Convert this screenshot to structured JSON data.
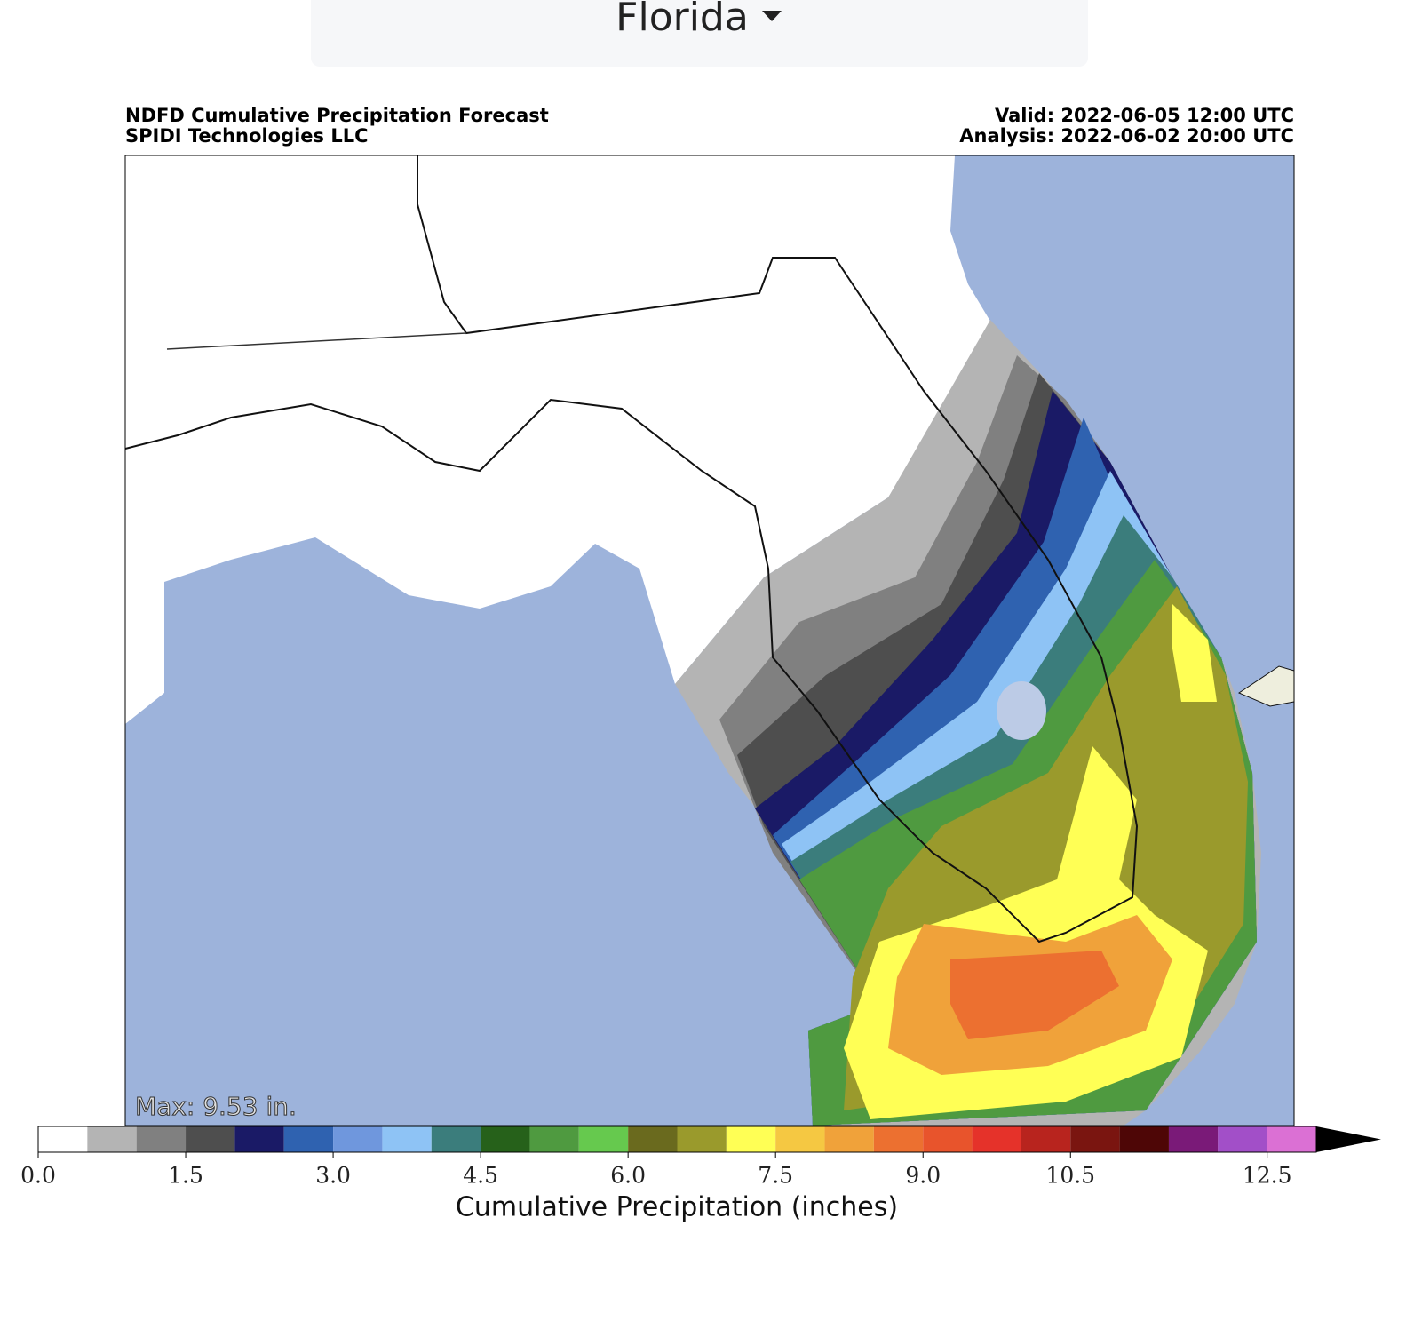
{
  "dropdown": {
    "label": "Florida"
  },
  "chart_data": {
    "type": "colorbar",
    "title": "NDFD Cumulative Precipitation Forecast",
    "subtitle": "SPIDI Technologies LLC",
    "valid": "Valid: 2022-06-05 12:00 UTC",
    "analysis": "Analysis: 2022-06-02 20:00 UTC",
    "annotation": "Max: 9.53 in.",
    "xlabel": "Cumulative Precipitation (inches)",
    "bins": [
      0,
      0.5,
      1,
      1.5,
      2,
      2.5,
      3,
      3.5,
      4,
      4.5,
      5,
      5.5,
      6,
      6.5,
      7,
      7.5,
      8,
      8.5,
      9,
      9.5,
      10,
      10.5,
      11,
      11.5,
      12,
      12.5,
      13
    ],
    "colors": [
      "#ffffff",
      "#b4b4b4",
      "#808080",
      "#4e4e4e",
      "#1a1a66",
      "#2f62b0",
      "#6f97dd",
      "#8ec3f5",
      "#3b7d7c",
      "#26611a",
      "#4f9a40",
      "#66c94e",
      "#6a6a1e",
      "#9a9a2c",
      "#ffff55",
      "#f5c842",
      "#f0a23a",
      "#ec7030",
      "#e8542c",
      "#e5322a",
      "#b8241e",
      "#7a1510",
      "#4e0606",
      "#7a1a78",
      "#a24fc8",
      "#db70d4"
    ],
    "extend": "max",
    "extend_color": "#000000",
    "xlim": [
      0,
      13
    ],
    "xticks": [
      {
        "value": 0,
        "label": "0.0"
      },
      {
        "value": 1.5,
        "label": "1.5"
      },
      {
        "value": 3,
        "label": "3.0"
      },
      {
        "value": 4.5,
        "label": "4.5"
      },
      {
        "value": 6,
        "label": "6.0"
      },
      {
        "value": 7.5,
        "label": "7.5"
      },
      {
        "value": 9,
        "label": "9.0"
      },
      {
        "value": 10.5,
        "label": "10.5"
      },
      {
        "value": 12.5,
        "label": "12.5"
      }
    ]
  }
}
